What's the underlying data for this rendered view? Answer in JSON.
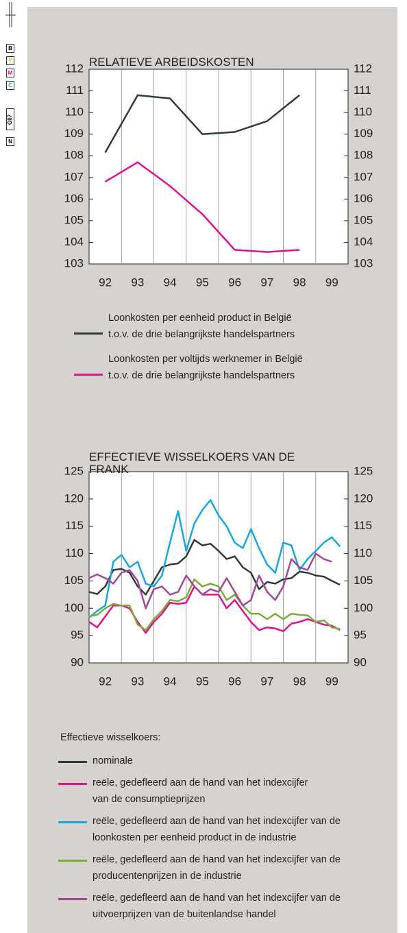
{
  "printer_marks": [
    "B",
    "Y",
    "M",
    "C",
    "G07",
    "N"
  ],
  "chart_data": [
    {
      "type": "line",
      "title": "RELATIEVE ARBEIDSKOSTEN",
      "categories": [
        "92",
        "93",
        "94",
        "95",
        "96",
        "97",
        "98",
        "99"
      ],
      "series": [
        {
          "name": "Loonkosten per eenheid product in België t.o.v. de drie belangrijkste handelspartners",
          "color": "#2f3b3a",
          "values": [
            108.15,
            110.8,
            110.65,
            109.0,
            109.1,
            109.6,
            110.8,
            null
          ]
        },
        {
          "name": "Loonkosten per voltijds werknemer in België t.o.v. de drie belangrijkste handelspartners",
          "color": "#e0128a",
          "values": [
            106.8,
            107.7,
            106.6,
            105.3,
            103.65,
            103.55,
            103.65,
            null
          ]
        }
      ],
      "ylim": [
        103,
        112
      ],
      "yticks": [
        103,
        104,
        105,
        106,
        107,
        108,
        109,
        110,
        111,
        112
      ],
      "right_axis_labels": true
    },
    {
      "type": "line",
      "title": "EFFECTIEVE WISSELKOERS VAN DE FRANK",
      "legend_title": "Effectieve wisselkoers:",
      "x": [
        1992,
        1992.25,
        1992.5,
        1992.75,
        1993,
        1993.25,
        1993.5,
        1993.75,
        1994,
        1994.25,
        1994.5,
        1994.75,
        1995,
        1995.25,
        1995.5,
        1995.75,
        1996,
        1996.25,
        1996.5,
        1996.75,
        1997,
        1997.25,
        1997.5,
        1997.75,
        1998,
        1998.25,
        1998.5,
        1998.75,
        1999,
        1999.25,
        1999.5,
        1999.75
      ],
      "series": [
        {
          "name": "nominale",
          "color": "#2f3b3a",
          "values": [
            103,
            102.6,
            104,
            107,
            107.2,
            106.5,
            104,
            102.5,
            105,
            107.5,
            108,
            108.2,
            109.5,
            112.5,
            111.5,
            111.8,
            110.5,
            109,
            109.5,
            107.5,
            106.5,
            103.5,
            104.8,
            104.5,
            105.3,
            105.5,
            106.7,
            106.5,
            106,
            105.8,
            105,
            104.3
          ]
        },
        {
          "name": "reële, gedefleerd aan de hand van het indexcijfer van de consumptieprijzen",
          "color": "#e0128a",
          "values": [
            97.5,
            96.5,
            98.5,
            100.5,
            100.5,
            100,
            97.5,
            95.5,
            97.5,
            99,
            101,
            100.8,
            101,
            104,
            102.5,
            102.5,
            102.5,
            100,
            101.5,
            99.5,
            97.5,
            96,
            96.5,
            96.3,
            95.8,
            97.2,
            97.5,
            98,
            97.5,
            97,
            96.8,
            96
          ]
        },
        {
          "name": "reële, gedefleerd aan de hand van het indexcijfer van de loonkosten per eenheid product in de industrie",
          "color": "#17a6e0",
          "values": [
            98.3,
            99.5,
            100.5,
            108.5,
            109.8,
            107.5,
            108.5,
            104.5,
            104,
            106,
            112,
            117.8,
            110.5,
            115.5,
            118,
            119.8,
            117,
            115,
            112,
            111,
            114.5,
            111,
            108,
            106.5,
            112,
            111.5,
            107,
            109,
            110.5,
            112,
            113,
            111.3
          ]
        },
        {
          "name": "reële, gedefleerd aan de hand van het indexcijfer van de producentenprijzen in de industrie",
          "color": "#7cab3a",
          "values": [
            98.5,
            98.8,
            100,
            100.8,
            100.5,
            100.5,
            97,
            96,
            98,
            99.5,
            101.5,
            101.3,
            102,
            105.3,
            104,
            104.5,
            104,
            101.5,
            102.5,
            100.5,
            99,
            99,
            98,
            99,
            98,
            99,
            98.8,
            98.7,
            97.5,
            97.8,
            96.5,
            96.2
          ]
        },
        {
          "name": "reële, gedefleerd aan de hand van het indexcijfer van de uitvoerprijzen van de buitenlandse handel",
          "color": "#a0479a",
          "values": [
            105.5,
            106.2,
            105.5,
            104.5,
            106.5,
            107,
            105,
            100,
            103.5,
            104,
            102.5,
            103,
            106,
            104,
            102.5,
            103.5,
            103,
            105.5,
            103,
            100.5,
            101.5,
            106,
            103,
            101.5,
            104,
            109,
            107.5,
            107,
            110,
            109,
            108.5,
            null
          ]
        }
      ],
      "xlim": [
        1992,
        2000
      ],
      "xticks": [
        {
          "value": 1992.5,
          "label": "92"
        },
        {
          "value": 1993.5,
          "label": "93"
        },
        {
          "value": 1994.5,
          "label": "94"
        },
        {
          "value": 1995.5,
          "label": "95"
        },
        {
          "value": 1996.5,
          "label": "96"
        },
        {
          "value": 1997.5,
          "label": "97"
        },
        {
          "value": 1998.5,
          "label": "98"
        },
        {
          "value": 1999.5,
          "label": "99"
        }
      ],
      "xgrid": [
        1993,
        1994,
        1995,
        1996,
        1997,
        1998,
        1999
      ],
      "ylim": [
        90,
        125
      ],
      "yticks": [
        90,
        95,
        100,
        105,
        110,
        115,
        120,
        125
      ],
      "right_axis_labels": true
    }
  ]
}
